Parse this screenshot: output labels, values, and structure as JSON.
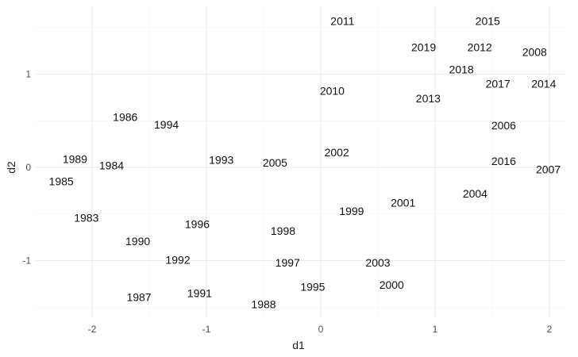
{
  "chart_data": {
    "type": "scatter",
    "title": "",
    "xlabel": "d1",
    "ylabel": "d2",
    "xlim": [
      -2.5,
      2.05
    ],
    "ylim": [
      -1.65,
      1.6
    ],
    "xticks": [
      -2,
      -1,
      0,
      1,
      2
    ],
    "yticks": [
      -1,
      0,
      1
    ],
    "grid": true,
    "legend": "none",
    "points": [
      {
        "label": "2011",
        "x": 0.19,
        "y": 1.57
      },
      {
        "label": "2015",
        "x": 1.46,
        "y": 1.57
      },
      {
        "label": "2019",
        "x": 0.9,
        "y": 1.29
      },
      {
        "label": "2012",
        "x": 1.39,
        "y": 1.29
      },
      {
        "label": "2008",
        "x": 1.87,
        "y": 1.24
      },
      {
        "label": "2018",
        "x": 1.23,
        "y": 1.05
      },
      {
        "label": "2017",
        "x": 1.55,
        "y": 0.9
      },
      {
        "label": "2014",
        "x": 1.95,
        "y": 0.9
      },
      {
        "label": "2010",
        "x": 0.1,
        "y": 0.82
      },
      {
        "label": "2013",
        "x": 0.94,
        "y": 0.74
      },
      {
        "label": "1986",
        "x": -1.71,
        "y": 0.54
      },
      {
        "label": "1994",
        "x": -1.35,
        "y": 0.46
      },
      {
        "label": "2006",
        "x": 1.6,
        "y": 0.45
      },
      {
        "label": "2002",
        "x": 0.14,
        "y": 0.16
      },
      {
        "label": "1989",
        "x": -2.15,
        "y": 0.09
      },
      {
        "label": "1993",
        "x": -0.87,
        "y": 0.08
      },
      {
        "label": "2016",
        "x": 1.6,
        "y": 0.07
      },
      {
        "label": "2005",
        "x": -0.4,
        "y": 0.05
      },
      {
        "label": "1984",
        "x": -1.83,
        "y": 0.02
      },
      {
        "label": "2007",
        "x": 1.99,
        "y": -0.02
      },
      {
        "label": "1985",
        "x": -2.27,
        "y": -0.15
      },
      {
        "label": "2004",
        "x": 1.35,
        "y": -0.28
      },
      {
        "label": "2001",
        "x": 0.72,
        "y": -0.38
      },
      {
        "label": "1999",
        "x": 0.27,
        "y": -0.47
      },
      {
        "label": "1983",
        "x": -2.05,
        "y": -0.54
      },
      {
        "label": "1996",
        "x": -1.08,
        "y": -0.61
      },
      {
        "label": "1998",
        "x": -0.33,
        "y": -0.68
      },
      {
        "label": "1990",
        "x": -1.6,
        "y": -0.79
      },
      {
        "label": "1992",
        "x": -1.25,
        "y": -0.99
      },
      {
        "label": "1997",
        "x": -0.29,
        "y": -1.02
      },
      {
        "label": "2003",
        "x": 0.5,
        "y": -1.02
      },
      {
        "label": "2000",
        "x": 0.62,
        "y": -1.26
      },
      {
        "label": "1995",
        "x": -0.07,
        "y": -1.28
      },
      {
        "label": "1991",
        "x": -1.06,
        "y": -1.35
      },
      {
        "label": "1987",
        "x": -1.59,
        "y": -1.39
      },
      {
        "label": "1988",
        "x": -0.5,
        "y": -1.47
      }
    ]
  }
}
